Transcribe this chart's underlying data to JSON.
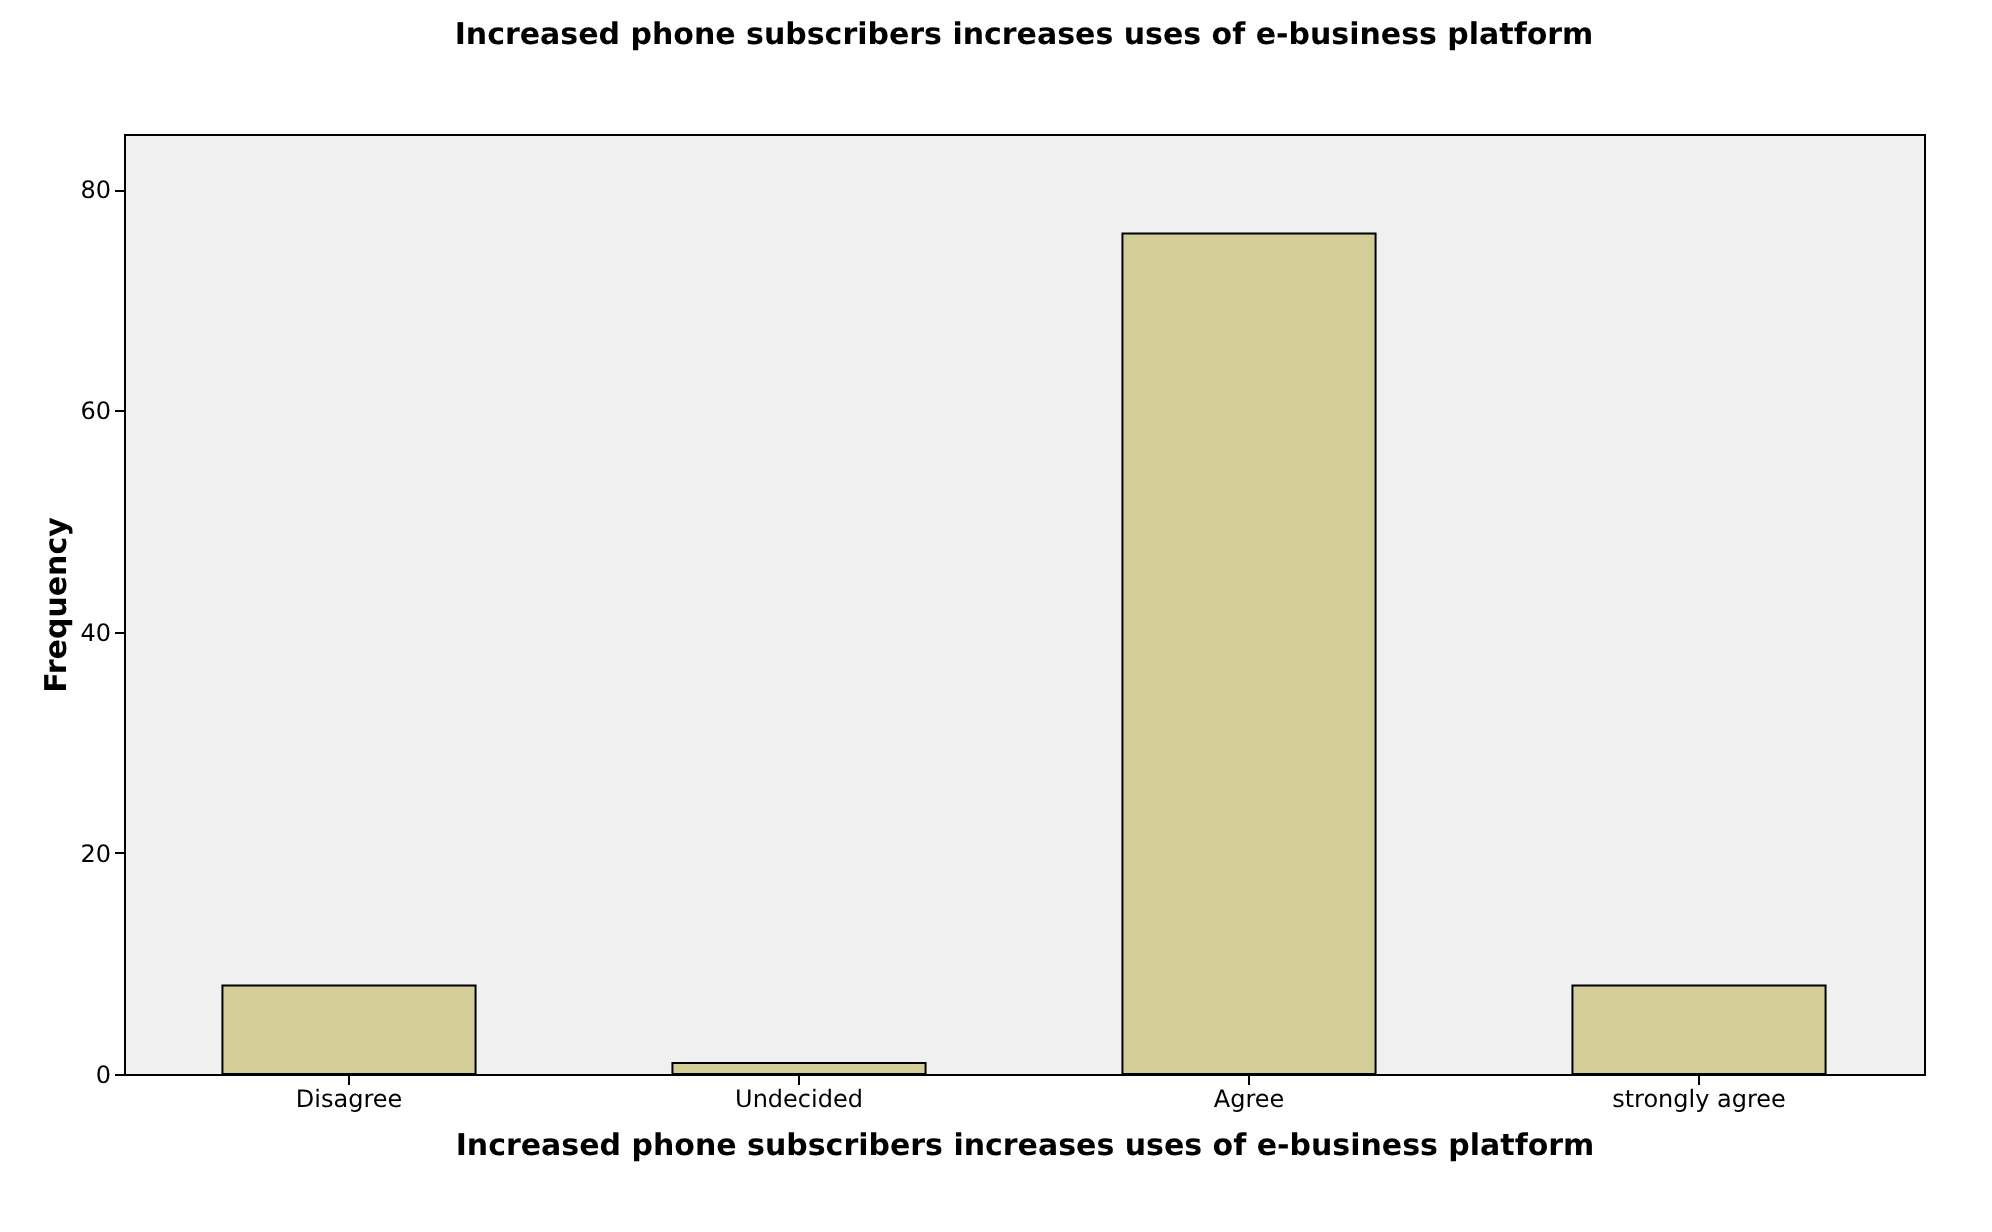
{
  "chart_data": {
    "type": "bar",
    "title": "Increased phone subscribers increases uses of e-business platform",
    "xlabel": "Increased phone subscribers increases uses of e-business platform",
    "ylabel": "Frequency",
    "categories": [
      "Disagree",
      "Undecided",
      "Agree",
      "strongly agree"
    ],
    "values": [
      8,
      1,
      76,
      8
    ],
    "color": "#d3ce97",
    "ylim": [
      0,
      85
    ],
    "yticks": [
      0,
      20,
      40,
      60,
      80
    ],
    "grid": false
  }
}
